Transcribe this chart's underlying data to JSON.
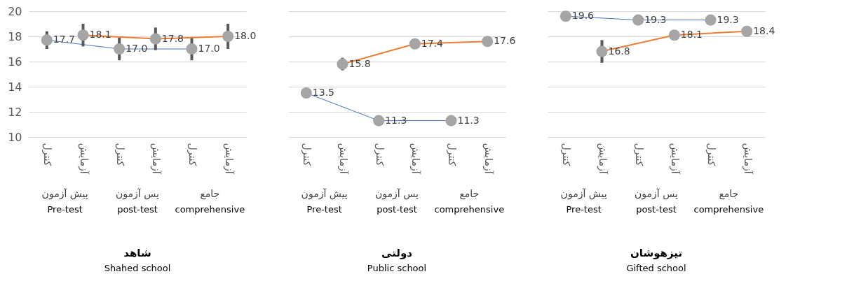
{
  "chart_data": [
    {
      "type": "line",
      "title": "شاهد",
      "subtitle": "Shahed school",
      "categories": [
        "کنترل",
        "آزمایش",
        "کنترل",
        "آزمایش",
        "کنترل",
        "آزمایش"
      ],
      "ylim": [
        10,
        20
      ],
      "yticks": [
        10,
        12,
        14,
        16,
        18,
        20
      ],
      "grid": "y",
      "marker": "circle",
      "data_labels": true,
      "annotations": [
        "پیش آزمون",
        "پس آزمون",
        "جامع",
        "Pre-test",
        "post-test",
        "comprehensive"
      ],
      "series": [
        {
          "color": "#4472c4",
          "values": [
            17.7,
            null,
            17.0,
            null,
            17.0,
            null
          ],
          "value_labels": [
            "17.7",
            null,
            "17.0",
            null,
            "17.0",
            null
          ],
          "errors": [
            0.7,
            null,
            0.9,
            null,
            0.9,
            null
          ]
        },
        {
          "color": "#ed7d31",
          "values": [
            null,
            18.1,
            null,
            17.8,
            null,
            18.0
          ],
          "value_labels": [
            null,
            "18.1",
            null,
            "17.8",
            null,
            "18.0"
          ],
          "errors": [
            null,
            0.9,
            null,
            0.9,
            null,
            1.0
          ]
        }
      ]
    },
    {
      "type": "line",
      "title": "دولتی",
      "subtitle": "Public school",
      "categories": [
        "کنترل",
        "آزمایش",
        "کنترل",
        "آزمایش",
        "کنترل",
        "آزمایش"
      ],
      "ylim": [
        10,
        20
      ],
      "yticks": [
        10,
        12,
        14,
        16,
        18,
        20
      ],
      "grid": "y",
      "tick_labels": "x",
      "marker": "circle",
      "data_labels": true,
      "annotations": [
        "پیش آزمون",
        "پس آزمون",
        "جامع",
        "Pre-test",
        "post-test",
        "comprehensive"
      ],
      "series": [
        {
          "color": "#4472c4",
          "values": [
            13.5,
            null,
            11.3,
            null,
            11.3,
            null
          ],
          "errors": [
            null,
            null,
            0.4,
            null,
            0.4,
            null
          ]
        },
        {
          "color": "#ed7d31",
          "values": [
            null,
            15.8,
            null,
            17.4,
            null,
            17.6
          ],
          "errors": [
            null,
            0.5,
            null,
            null,
            null,
            null
          ]
        }
      ]
    },
    {
      "type": "line",
      "title": "تیزهوشان",
      "subtitle": "Gifted school",
      "categories": [
        "کنترل",
        "آزمایش",
        "کنترل",
        "آزمایش",
        "کنترل",
        "آزمایش"
      ],
      "ylim": [
        10,
        20
      ],
      "yticks": [
        10,
        12,
        14,
        16,
        18,
        20
      ],
      "grid": "y",
      "tick_labels": "x",
      "marker": "circle",
      "data_labels": true,
      "annotations": [
        "پیش آزمون",
        "پس آزمون",
        "جامع",
        "Pre-test",
        "post-test",
        "comprehensive"
      ],
      "series": [
        {
          "color": "#4472c4",
          "values": [
            19.6,
            null,
            19.3,
            null,
            19.3,
            null
          ]
        },
        {
          "color": "#ed7d31",
          "values": [
            null,
            16.8,
            null,
            18.1,
            null,
            18.4
          ],
          "errors": [
            null,
            0.9,
            null,
            null,
            null,
            null
          ]
        }
      ]
    }
  ]
}
